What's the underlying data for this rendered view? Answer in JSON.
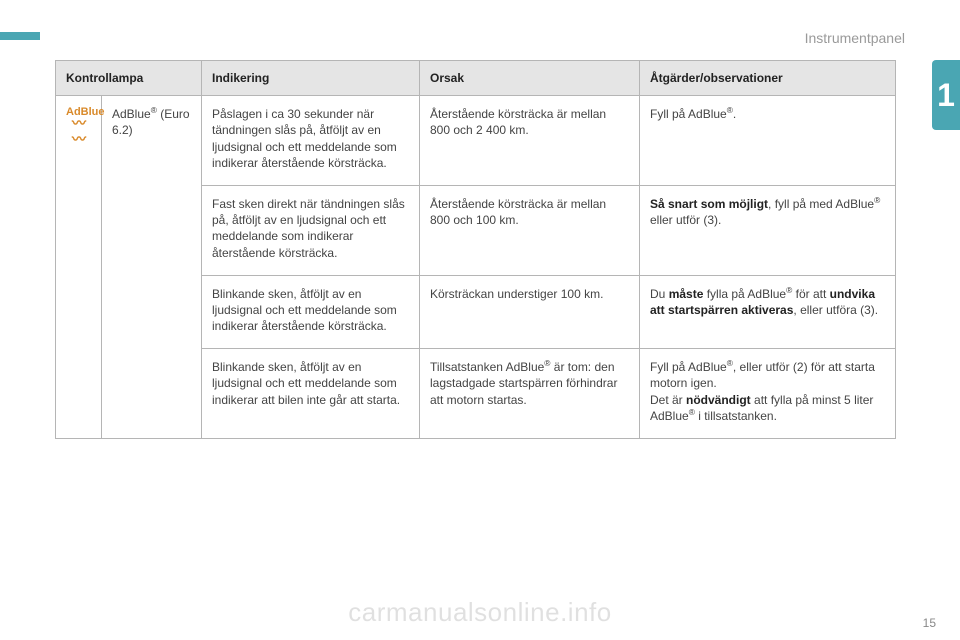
{
  "page": {
    "section": "Instrumentpanel",
    "chapter_number": "1",
    "page_number": "15",
    "watermark": "carmanualsonline.info",
    "accent_color": "#4aa6b3",
    "icon_color": "#d98a2b"
  },
  "table": {
    "headers": {
      "lamp": "Kontrollampa",
      "indication": "Indikering",
      "cause": "Orsak",
      "action": "Åtgärder/observationer"
    },
    "lamp": {
      "label": "AdBlue",
      "name_html": "AdBlue<sup>®</sup> (Euro 6.2)"
    },
    "rows": [
      {
        "indication": "Påslagen i ca 30 sekunder när tändningen slås på, åtföljt av en ljudsignal och ett meddelande som indikerar återstående körsträcka.",
        "cause": "Återstående körsträcka är mellan 800 och 2 400 km.",
        "action_html": "Fyll på AdBlue<sup>®</sup>."
      },
      {
        "indication": "Fast sken direkt när tändningen slås på, åtföljt av en ljudsignal och ett meddelande som indikerar återstående körsträcka.",
        "cause": "Återstående körsträcka är mellan 800 och 100 km.",
        "action_html": "<b>Så snart som möjligt</b>, fyll på med AdBlue<sup>®</sup> eller utför (3)."
      },
      {
        "indication": "Blinkande sken, åtföljt av en ljudsignal och ett meddelande som indikerar återstående körsträcka.",
        "cause": "Körsträckan understiger 100 km.",
        "action_html": "Du <b>måste</b> fylla på AdBlue<sup>®</sup> för att <b>undvika att startspärren aktiveras</b>, eller utföra (3)."
      },
      {
        "indication": "Blinkande sken, åtföljt av en ljudsignal och ett meddelande som indikerar att bilen inte går att starta.",
        "cause_html": "Tillsatstanken AdBlue<sup>®</sup> är tom: den lagstadgade startspärren förhindrar att motorn startas.",
        "action_html": "Fyll på AdBlue<sup>®</sup>, eller utför (2) för att starta motorn igen.<br>Det är <b>nödvändigt</b> att fylla på minst 5 liter AdBlue<sup>®</sup> i tillsatstanken."
      }
    ]
  }
}
